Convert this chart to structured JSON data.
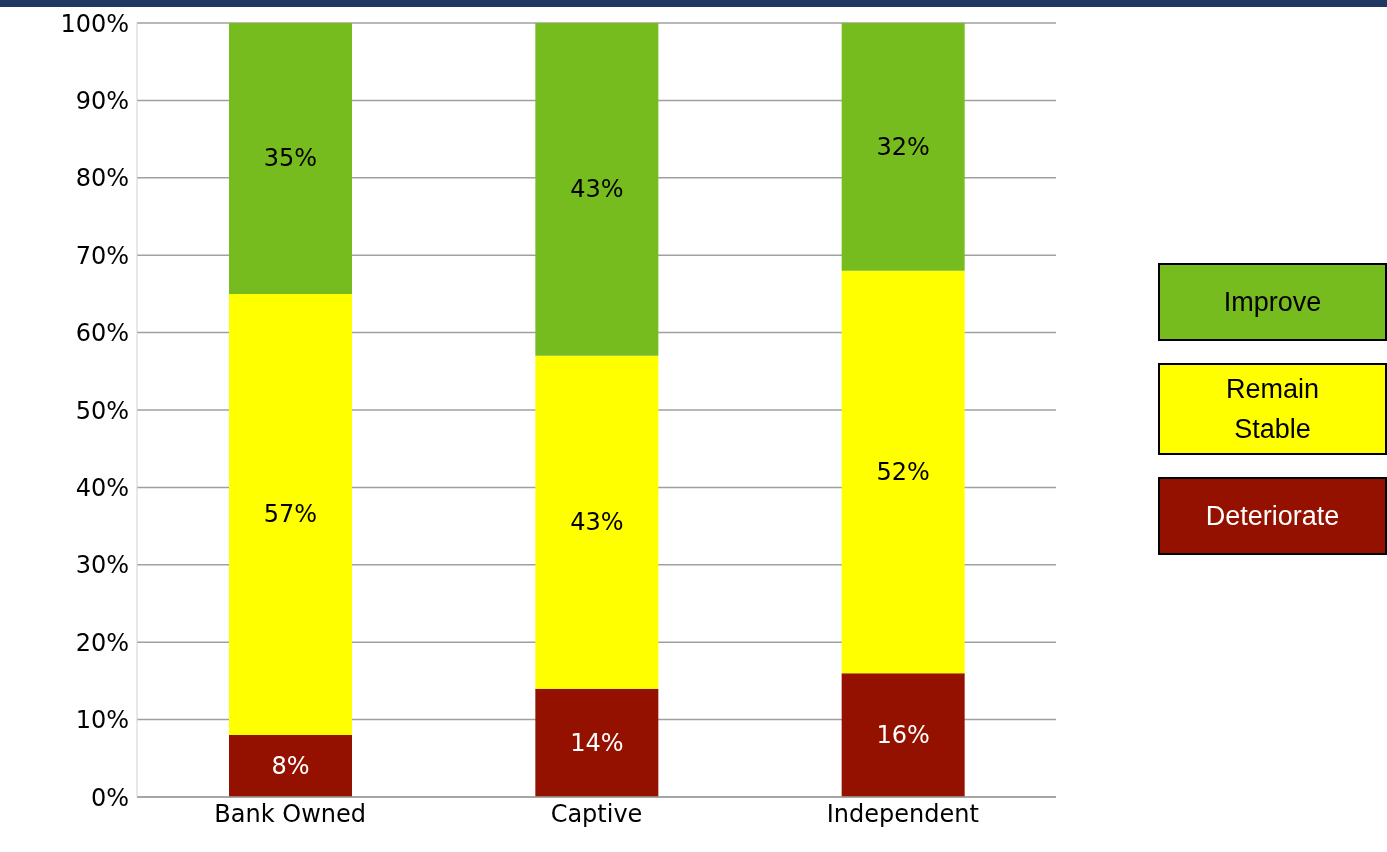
{
  "chart_data": {
    "type": "bar",
    "stacked": true,
    "categories": [
      "Bank Owned",
      "Captive",
      "Independent"
    ],
    "series": [
      {
        "name": "Deteriorate",
        "color": "#941100",
        "values": [
          8,
          14,
          16
        ],
        "value_labels": [
          "8%",
          "14%",
          "16%"
        ]
      },
      {
        "name": "Remain Stable",
        "color": "#ffff00",
        "values": [
          57,
          43,
          52
        ],
        "value_labels": [
          "57%",
          "43%",
          "52%"
        ]
      },
      {
        "name": "Improve",
        "color": "#77bc1f",
        "values": [
          35,
          43,
          32
        ],
        "value_labels": [
          "35%",
          "43%",
          "32%"
        ]
      }
    ],
    "ylim": [
      0,
      100
    ],
    "yticks": [
      {
        "value": 0,
        "label": "0%"
      },
      {
        "value": 10,
        "label": "10%"
      },
      {
        "value": 20,
        "label": "20%"
      },
      {
        "value": 30,
        "label": "30%"
      },
      {
        "value": 40,
        "label": "40%"
      },
      {
        "value": 50,
        "label": "50%"
      },
      {
        "value": 60,
        "label": "60%"
      },
      {
        "value": 70,
        "label": "70%"
      },
      {
        "value": 80,
        "label": "80%"
      },
      {
        "value": 90,
        "label": "90%"
      },
      {
        "value": 100,
        "label": "100%"
      }
    ],
    "grid": "y",
    "legend": "right"
  }
}
